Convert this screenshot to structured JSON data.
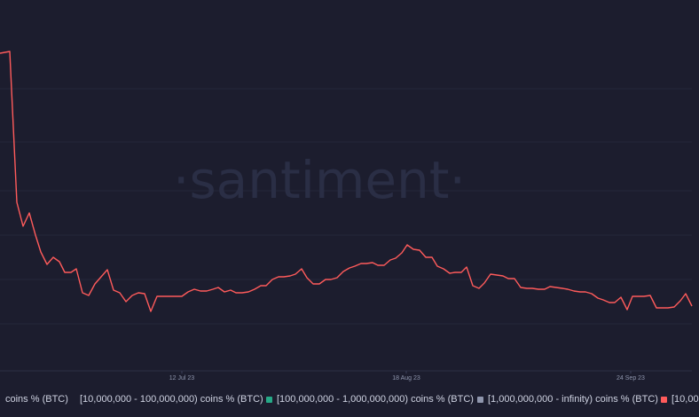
{
  "chart_data": {
    "type": "line",
    "title": "",
    "xlabel": "",
    "ylabel": "",
    "x_tick_labels": [
      "12 Jul 23",
      "18 Aug 23",
      "24 Sep 23"
    ],
    "grid": true,
    "watermark": "·santiment·",
    "legend_position": "bottom",
    "legend": [
      {
        "label": "coins % (BTC)",
        "color": "#1c1d2e"
      },
      {
        "label": "[10,000,000 - 100,000,000) coins % (BTC)",
        "color": "#1c1d2e"
      },
      {
        "label": "[100,000,000 - 1,000,000,000) coins % (BTC)",
        "color": "#26a987"
      },
      {
        "label": "[1,000,000,000 - infinity) coins % (BTC)",
        "color": "#8f96ad"
      },
      {
        "label": "[10,00",
        "color": "#ff5b5b"
      }
    ],
    "series": [
      {
        "color": "#ff5b5b",
        "points": [
          [
            0,
            60
          ],
          [
            11,
            58
          ],
          [
            19,
            228
          ],
          [
            26,
            255
          ],
          [
            33,
            240
          ],
          [
            40,
            265
          ],
          [
            46,
            284
          ],
          [
            53,
            298
          ],
          [
            60,
            290
          ],
          [
            67,
            295
          ],
          [
            73,
            307
          ],
          [
            80,
            307
          ],
          [
            86,
            303
          ],
          [
            93,
            330
          ],
          [
            100,
            333
          ],
          [
            107,
            320
          ],
          [
            114,
            312
          ],
          [
            121,
            304
          ],
          [
            128,
            327
          ],
          [
            135,
            330
          ],
          [
            142,
            340
          ],
          [
            149,
            333
          ],
          [
            156,
            330
          ],
          [
            163,
            331
          ],
          [
            170,
            351
          ],
          [
            177,
            334
          ],
          [
            184,
            334
          ],
          [
            191,
            334
          ],
          [
            198,
            334
          ],
          [
            205,
            334
          ],
          [
            212,
            329
          ],
          [
            219,
            326
          ],
          [
            226,
            328
          ],
          [
            233,
            328
          ],
          [
            240,
            326
          ],
          [
            246,
            324
          ],
          [
            253,
            329
          ],
          [
            260,
            327
          ],
          [
            266,
            330
          ],
          [
            273,
            330
          ],
          [
            280,
            329
          ],
          [
            287,
            326
          ],
          [
            294,
            322
          ],
          [
            300,
            322
          ],
          [
            307,
            315
          ],
          [
            314,
            312
          ],
          [
            320,
            312
          ],
          [
            327,
            311
          ],
          [
            333,
            309
          ],
          [
            340,
            303
          ],
          [
            346,
            313
          ],
          [
            353,
            320
          ],
          [
            360,
            320
          ],
          [
            367,
            315
          ],
          [
            373,
            315
          ],
          [
            380,
            313
          ],
          [
            387,
            306
          ],
          [
            394,
            302
          ],
          [
            400,
            300
          ],
          [
            407,
            297
          ],
          [
            413,
            297
          ],
          [
            420,
            296
          ],
          [
            426,
            299
          ],
          [
            433,
            299
          ],
          [
            440,
            293
          ],
          [
            446,
            291
          ],
          [
            453,
            285
          ],
          [
            459,
            276
          ],
          [
            466,
            281
          ],
          [
            473,
            282
          ],
          [
            480,
            290
          ],
          [
            487,
            290
          ],
          [
            493,
            300
          ],
          [
            500,
            303
          ],
          [
            507,
            308
          ],
          [
            513,
            307
          ],
          [
            520,
            307
          ],
          [
            526,
            301
          ],
          [
            533,
            322
          ],
          [
            540,
            325
          ],
          [
            546,
            319
          ],
          [
            553,
            309
          ],
          [
            560,
            310
          ],
          [
            567,
            311
          ],
          [
            573,
            314
          ],
          [
            580,
            314
          ],
          [
            587,
            324
          ],
          [
            594,
            325
          ],
          [
            600,
            325
          ],
          [
            607,
            326
          ],
          [
            614,
            326
          ],
          [
            620,
            323
          ],
          [
            627,
            324
          ],
          [
            634,
            325
          ],
          [
            640,
            326
          ],
          [
            647,
            328
          ],
          [
            654,
            329
          ],
          [
            660,
            329
          ],
          [
            667,
            331
          ],
          [
            674,
            336
          ],
          [
            680,
            338
          ],
          [
            687,
            341
          ],
          [
            693,
            341
          ],
          [
            700,
            335
          ],
          [
            707,
            349
          ],
          [
            713,
            334
          ],
          [
            720,
            334
          ],
          [
            726,
            334
          ],
          [
            733,
            333
          ],
          [
            740,
            347
          ],
          [
            746,
            347
          ],
          [
            753,
            347
          ],
          [
            760,
            346
          ],
          [
            767,
            339
          ],
          [
            773,
            331
          ],
          [
            780,
            345
          ]
        ]
      }
    ]
  }
}
